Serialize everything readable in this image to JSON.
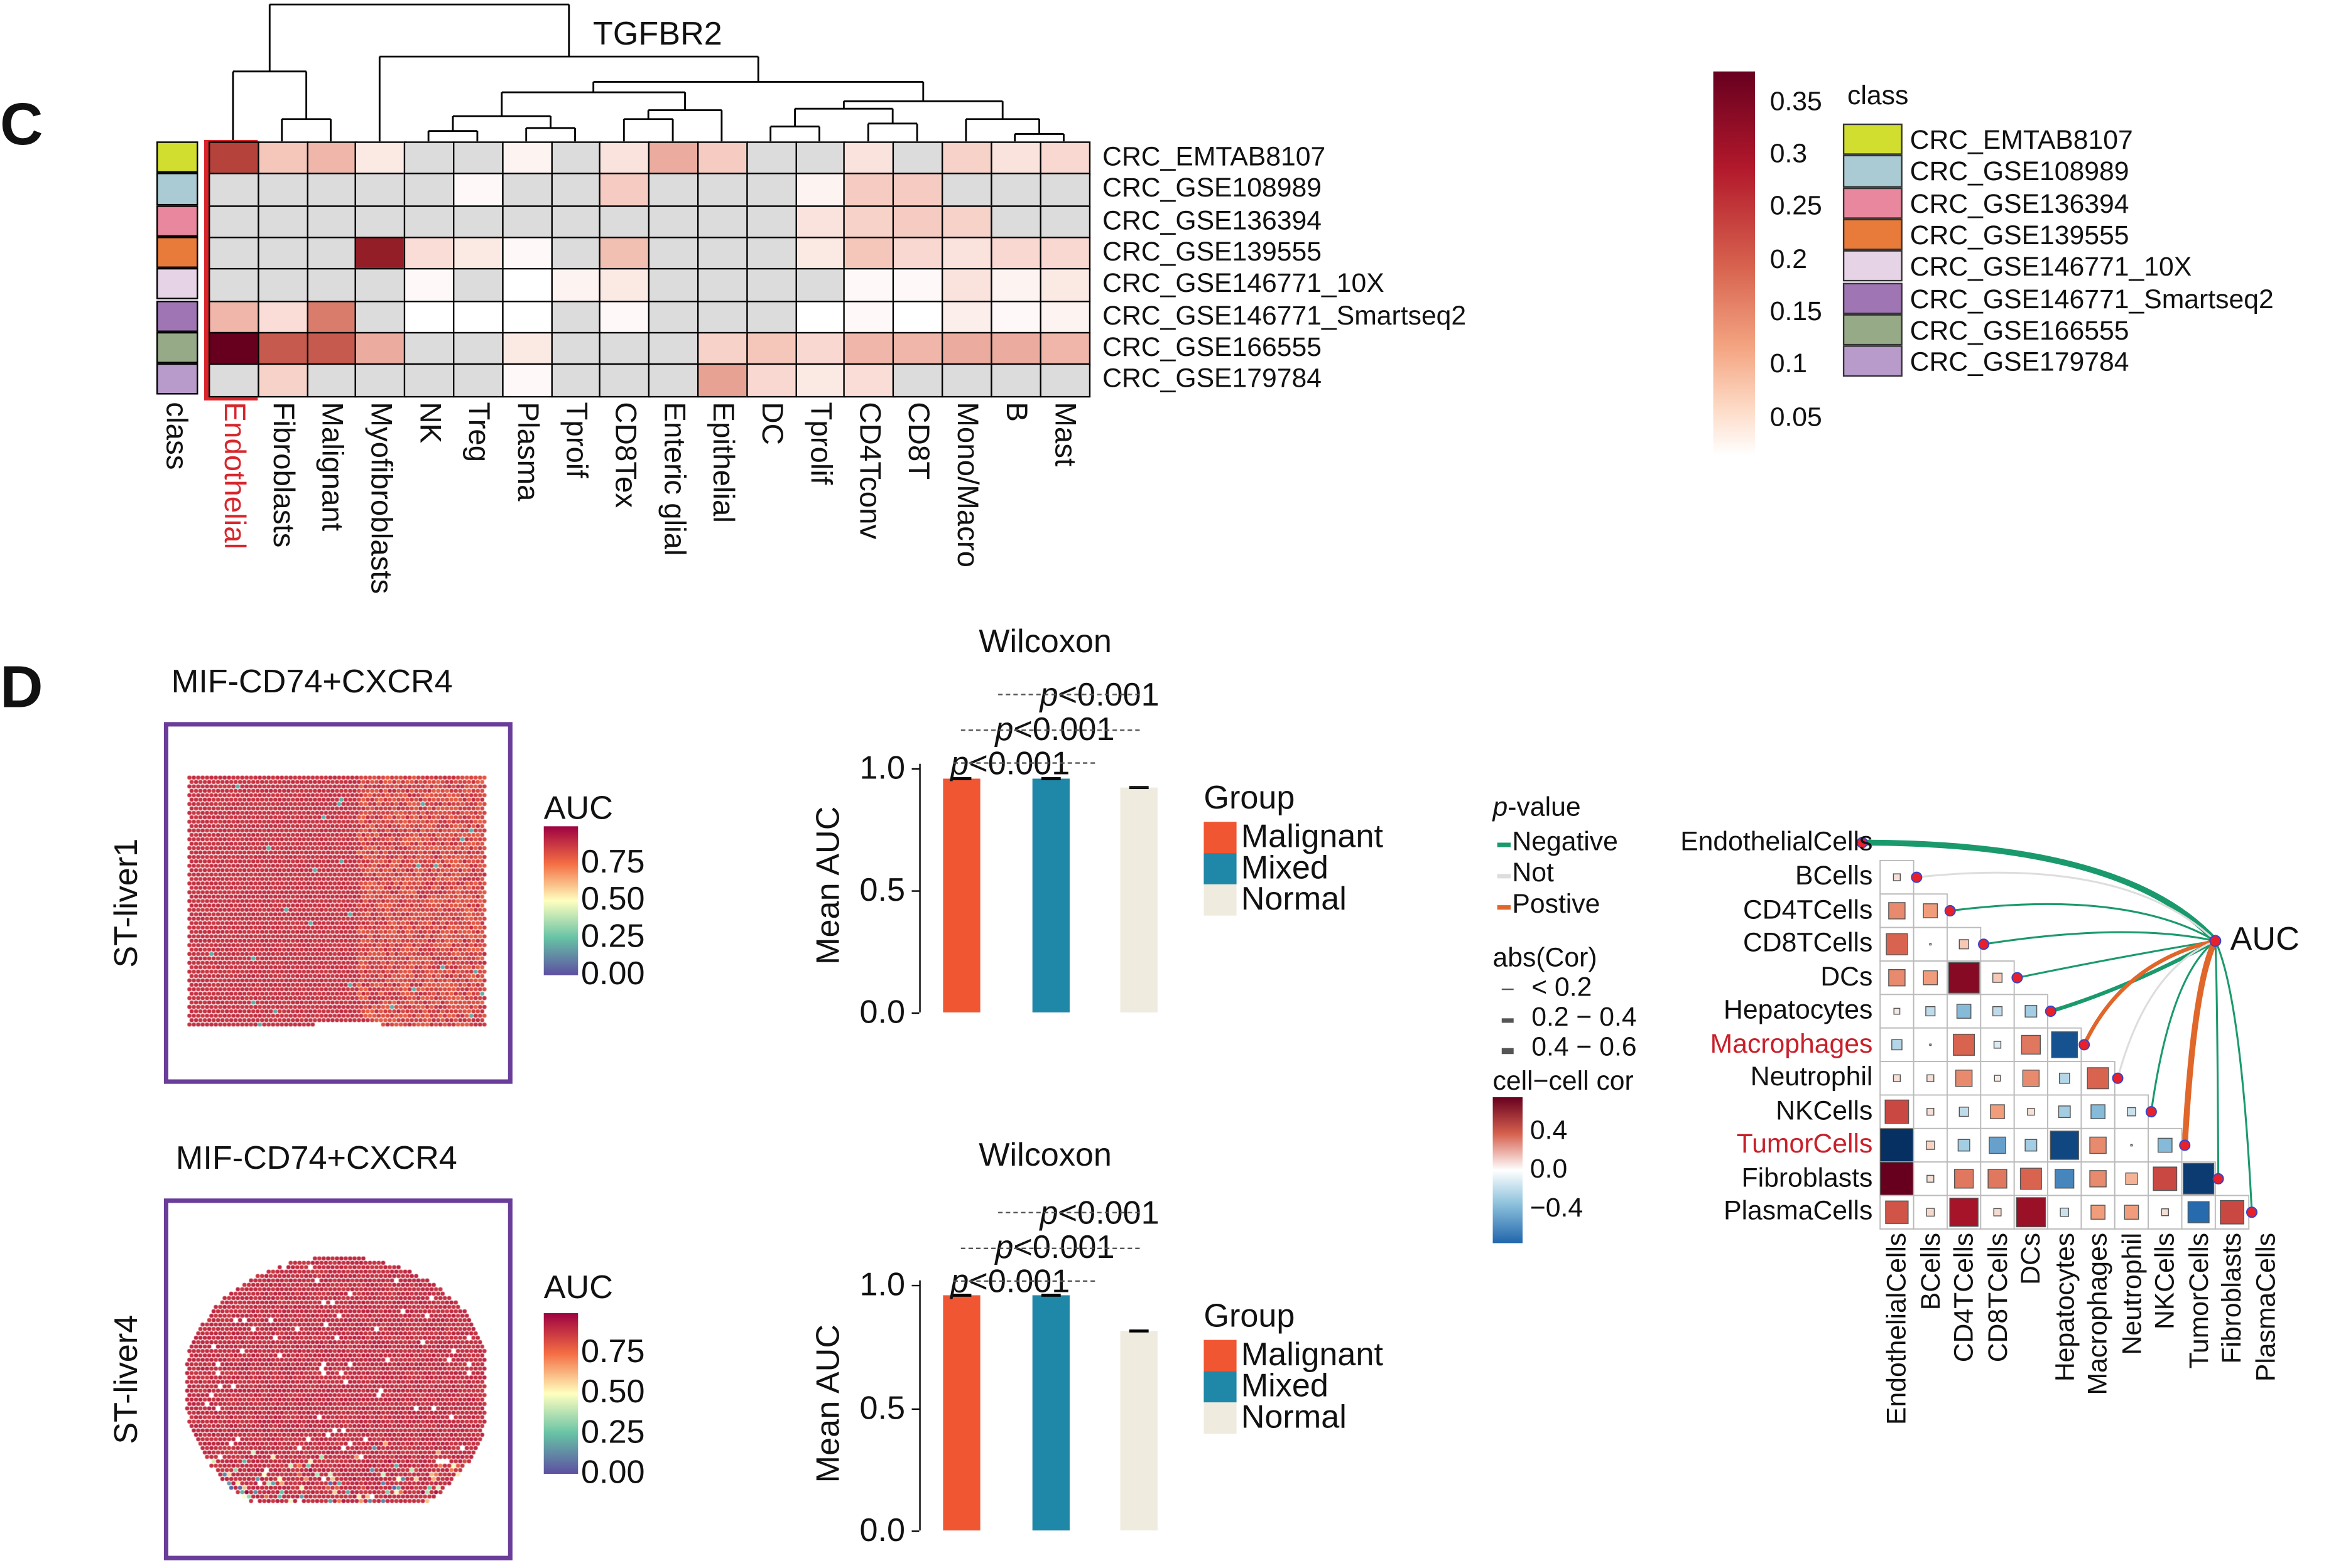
{
  "panel_c": {
    "letter": "C",
    "gene": "TGFBR2",
    "class_label": "class",
    "highlighted_column": "Endothelial",
    "colorbar_ticks": [
      "0.35",
      "0.3",
      "0.25",
      "0.2",
      "0.15",
      "0.1",
      "0.05"
    ],
    "legend_title": "class"
  },
  "panel_d": {
    "letter": "D",
    "spatial": [
      {
        "title": "MIF-CD74+CXCR4",
        "sample": "ST-liver1",
        "legend_title": "AUC",
        "ticks": [
          "0.75",
          "0.50",
          "0.25",
          "0.00"
        ]
      },
      {
        "title": "MIF-CD74+CXCR4",
        "sample": "ST-liver4",
        "legend_title": "AUC",
        "ticks": [
          "0.75",
          "0.50",
          "0.25",
          "0.00"
        ]
      }
    ]
  },
  "corr_legend": {
    "pvalue_title": "p-value",
    "pvalue_items": [
      "Negative",
      "Not",
      "Postive"
    ],
    "pvalue_colors": [
      "#1a9a6c",
      "#dddddd",
      "#e0662a"
    ],
    "abscor_title": "abs(Cor)",
    "abscor_items": [
      "< 0.2",
      "0.2 − 0.4",
      "0.4 − 0.6"
    ],
    "cellcor_title": "cell−cell cor",
    "cellcor_ticks": [
      "0.4",
      "0.0",
      "−0.4"
    ],
    "auc_label": "AUC"
  },
  "chart_data": [
    {
      "type": "heatmap",
      "title": "TGFBR2",
      "columns": [
        "Endothelial",
        "Fibroblasts",
        "Malignant",
        "Myofibroblasts",
        "NK",
        "Treg",
        "Plasma",
        "Tproif",
        "CD8Tex",
        "Enteric glial",
        "Epithelial",
        "DC",
        "Tprolif",
        "CD4Tconv",
        "CD8T",
        "Mono/Macro",
        "B",
        "Mast"
      ],
      "rows": [
        {
          "name": "CRC_EMTAB8107",
          "class_color": "#d1de2f",
          "values": [
            0.25,
            0.1,
            0.12,
            0.04,
            null,
            null,
            0.02,
            null,
            0.05,
            0.13,
            0.09,
            null,
            null,
            0.05,
            null,
            0.08,
            0.05,
            0.07
          ]
        },
        {
          "name": "CRC_GSE108989",
          "class_color": "#aacbd3",
          "values": [
            null,
            null,
            null,
            null,
            null,
            0.01,
            null,
            null,
            0.09,
            null,
            null,
            null,
            0.02,
            0.09,
            0.09,
            null,
            null,
            null
          ]
        },
        {
          "name": "CRC_GSE136394",
          "class_color": "#e8879d",
          "values": [
            null,
            null,
            null,
            null,
            null,
            null,
            null,
            null,
            null,
            null,
            null,
            null,
            0.05,
            0.08,
            0.09,
            0.08,
            null,
            null
          ]
        },
        {
          "name": "CRC_GSE139555",
          "class_color": "#e87a3a",
          "values": [
            null,
            null,
            null,
            0.3,
            0.06,
            0.04,
            0.01,
            null,
            0.11,
            null,
            null,
            null,
            0.04,
            0.1,
            0.07,
            0.05,
            0.07,
            0.07
          ]
        },
        {
          "name": "CRC_GSE146771_10X",
          "class_color": "#e6d3e6",
          "values": [
            null,
            null,
            null,
            null,
            0.01,
            null,
            0,
            0.02,
            0.04,
            null,
            null,
            null,
            null,
            0.01,
            0.01,
            0.05,
            0.02,
            0.04
          ]
        },
        {
          "name": "CRC_GSE146771_Smartseq2",
          "class_color": "#9f76b3",
          "values": [
            0.12,
            0.06,
            0.18,
            null,
            0,
            0,
            0,
            null,
            0.01,
            null,
            null,
            null,
            0,
            0.01,
            0,
            0.03,
            0.01,
            0.02
          ]
        },
        {
          "name": "CRC_GSE166555",
          "class_color": "#97aa88",
          "values": [
            0.35,
            0.22,
            0.22,
            0.13,
            null,
            null,
            0.04,
            null,
            null,
            null,
            0.08,
            0.1,
            0.07,
            0.12,
            0.12,
            0.13,
            0.13,
            0.12
          ]
        },
        {
          "name": "CRC_GSE179784",
          "class_color": "#b89bca",
          "values": [
            null,
            0.08,
            null,
            null,
            null,
            null,
            0.01,
            null,
            null,
            null,
            0.14,
            0.07,
            0.04,
            0.06,
            null,
            null,
            null,
            null
          ]
        }
      ],
      "range": [
        0,
        0.35
      ],
      "na_color": "#dcdcdc"
    },
    {
      "type": "bar",
      "title": "Wilcoxon",
      "ylabel": "Mean AUC",
      "yticks": [
        "1.0",
        "0.5",
        "0.0"
      ],
      "ylim": [
        0,
        1.0
      ],
      "legend_title": "Group",
      "categories": [
        "Malignant",
        "Mixed",
        "Normal"
      ],
      "colors": [
        "#f05632",
        "#1f87a8",
        "#efebde"
      ],
      "values": [
        0.96,
        0.96,
        0.92
      ],
      "pvalues": [
        "p<0.001",
        "p<0.001",
        "p<0.001"
      ]
    },
    {
      "type": "bar",
      "title": "Wilcoxon",
      "ylabel": "Mean AUC",
      "yticks": [
        "1.0",
        "0.5",
        "0.0"
      ],
      "ylim": [
        0,
        1.0
      ],
      "legend_title": "Group",
      "categories": [
        "Malignant",
        "Mixed",
        "Normal"
      ],
      "colors": [
        "#f05632",
        "#1f87a8",
        "#efebde"
      ],
      "values": [
        0.96,
        0.96,
        0.81
      ],
      "pvalues": [
        "p<0.001",
        "p<0.001",
        "p<0.001"
      ]
    },
    {
      "type": "heatmap",
      "subtype": "correlogram",
      "labels": [
        "EndothelialCells",
        "BCells",
        "CD4TCells",
        "CD8TCells",
        "DCs",
        "Hepatocytes",
        "Macrophages",
        "Neutrophil",
        "NKCells",
        "TumorCells",
        "Fibroblasts",
        "PlasmaCells"
      ],
      "highlighted": [
        "Macrophages",
        "TumorCells"
      ],
      "lower": [
        [],
        [
          0.05
        ],
        [
          0.25,
          0.2
        ],
        [
          0.35,
          0.0,
          0.1
        ],
        [
          0.25,
          0.2,
          0.55,
          0.1
        ],
        [
          0.03,
          -0.1,
          -0.2,
          -0.1,
          -0.15
        ],
        [
          -0.12,
          0.02,
          0.35,
          -0.05,
          0.3,
          -0.45
        ],
        [
          0.05,
          0.05,
          0.25,
          0.03,
          0.25,
          -0.12,
          0.35
        ],
        [
          0.4,
          0.05,
          -0.1,
          0.2,
          0.05,
          -0.15,
          -0.2,
          -0.08
        ],
        [
          -0.7,
          0.08,
          -0.15,
          -0.25,
          -0.15,
          -0.5,
          0.25,
          0.02,
          -0.2
        ],
        [
          0.65,
          0.05,
          0.3,
          0.3,
          0.35,
          -0.3,
          0.25,
          0.15,
          0.4,
          -0.55
        ],
        [
          0.38,
          0.07,
          0.5,
          0.06,
          0.52,
          -0.08,
          0.2,
          0.2,
          0.05,
          -0.35,
          0.4
        ]
      ],
      "auc_links": [
        {
          "sign": "Negative",
          "abs": "0.4-0.6"
        },
        {
          "sign": "Not",
          "abs": "<0.2"
        },
        {
          "sign": "Negative",
          "abs": "<0.2"
        },
        {
          "sign": "Negative",
          "abs": "<0.2"
        },
        {
          "sign": "Negative",
          "abs": "<0.2"
        },
        {
          "sign": "Negative",
          "abs": "0.2-0.4"
        },
        {
          "sign": "Positive",
          "abs": "0.2-0.4"
        },
        {
          "sign": "Not",
          "abs": "<0.2"
        },
        {
          "sign": "Negative",
          "abs": "<0.2"
        },
        {
          "sign": "Positive",
          "abs": "0.4-0.6"
        },
        {
          "sign": "Negative",
          "abs": "<0.2"
        },
        {
          "sign": "Negative",
          "abs": "<0.2"
        }
      ],
      "range": [
        -0.6,
        0.6
      ]
    }
  ]
}
